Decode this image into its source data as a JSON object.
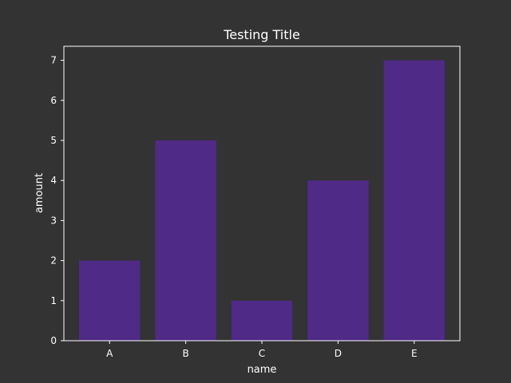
{
  "chart_data": {
    "type": "bar",
    "title": "Testing Title",
    "xlabel": "name",
    "ylabel": "amount",
    "categories": [
      "A",
      "B",
      "C",
      "D",
      "E"
    ],
    "values": [
      2,
      5,
      1,
      4,
      7
    ],
    "ylim": [
      0,
      7.35
    ],
    "yticks": [
      0,
      1,
      2,
      3,
      4,
      5,
      6,
      7
    ],
    "grid": false,
    "colors": {
      "background": "#333333",
      "bar": "#4f2a87",
      "axes": "#ffffff",
      "text": "#ffffff"
    }
  }
}
